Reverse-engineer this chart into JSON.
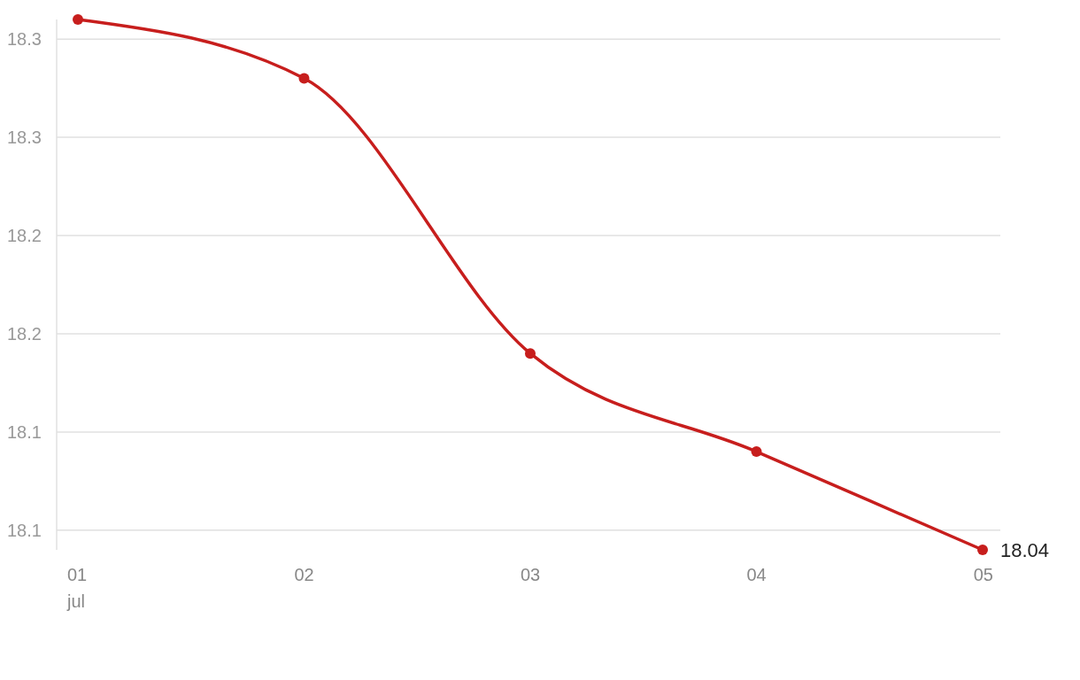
{
  "chart_data": {
    "type": "line",
    "categories": [
      "01 jul",
      "02",
      "03",
      "04",
      "05"
    ],
    "series": [
      {
        "color": "#c71e1d",
        "values": [
          18.31,
          18.28,
          18.14,
          18.09,
          18.04
        ],
        "value_labels": [
          null,
          null,
          null,
          null,
          "18.04"
        ]
      }
    ],
    "yticks": [
      {
        "value": 18.05,
        "label": "18.1"
      },
      {
        "value": 18.1,
        "label": "18.1"
      },
      {
        "value": 18.15,
        "label": "18.2"
      },
      {
        "value": 18.2,
        "label": "18.2"
      },
      {
        "value": 18.25,
        "label": "18.3"
      },
      {
        "value": 18.3,
        "label": "18.3"
      }
    ],
    "ylim": [
      18.04,
      18.31
    ],
    "grid": "y",
    "marker": "circle",
    "line_style": "solid"
  }
}
